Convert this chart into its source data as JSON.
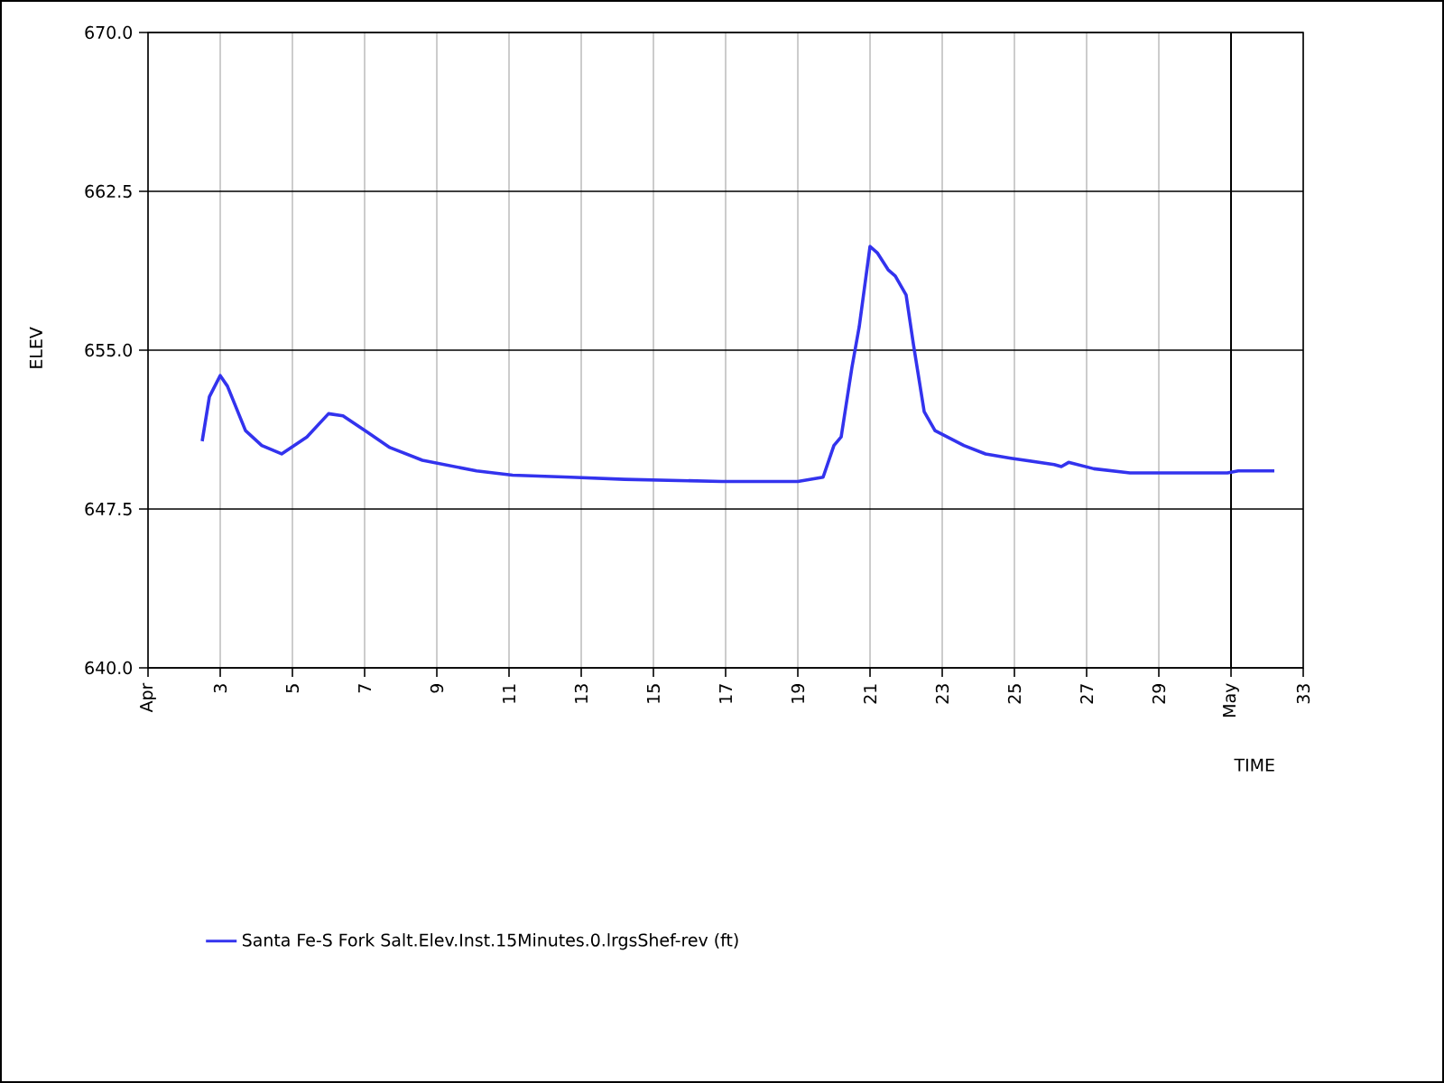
{
  "chart_data": {
    "type": "line",
    "xlabel": "TIME",
    "ylabel": "ELEV",
    "xlim": [
      1,
      33
    ],
    "ylim": [
      640,
      670
    ],
    "xticks": [
      {
        "value": 1,
        "label": "Apr"
      },
      3,
      5,
      7,
      9,
      11,
      13,
      15,
      17,
      19,
      21,
      23,
      25,
      27,
      29,
      {
        "value": 31,
        "label": "May"
      },
      33
    ],
    "yticks": [
      {
        "value": 640,
        "label": "640.0"
      },
      {
        "value": 647.5,
        "label": "647.5"
      },
      {
        "value": 655,
        "label": "655.0"
      },
      {
        "value": 662.5,
        "label": "662.5"
      },
      {
        "value": 670,
        "label": "670.0"
      }
    ],
    "grid": true,
    "legend": "bottom",
    "marker": "none",
    "line_style": "solid",
    "ref_lines": [
      {
        "axis": "x",
        "value": 31,
        "color": "#000000"
      }
    ],
    "series": [
      {
        "name": "Santa Fe-S Fork Salt.Elev.Inst.15Minutes.0.lrgsShef-rev (ft)",
        "color": "#3333ee",
        "x": [
          2.5,
          2.7,
          3.0,
          3.2,
          3.7,
          4.15,
          4.7,
          5.4,
          6.0,
          6.4,
          7.1,
          7.7,
          8.6,
          10.1,
          11.1,
          12.7,
          14.2,
          16.9,
          19.0,
          19.7,
          20.0,
          20.2,
          20.5,
          20.7,
          21.0,
          21.2,
          21.5,
          21.7,
          22.0,
          22.2,
          22.5,
          22.8,
          23.6,
          24.2,
          24.9,
          26.1,
          26.3,
          26.5,
          27.2,
          28.2,
          29.2,
          30.9,
          31.2,
          32.2
        ],
        "values": [
          650.7,
          652.8,
          653.8,
          653.3,
          651.2,
          650.5,
          650.1,
          650.9,
          652.0,
          651.9,
          651.1,
          650.4,
          649.8,
          649.3,
          649.1,
          649.0,
          648.9,
          648.8,
          648.8,
          649.0,
          650.5,
          650.9,
          654.2,
          656.1,
          659.9,
          659.6,
          658.8,
          658.5,
          657.6,
          655.3,
          652.1,
          651.2,
          650.5,
          650.1,
          649.9,
          649.6,
          649.5,
          649.7,
          649.4,
          649.2,
          649.2,
          649.2,
          649.3,
          649.3
        ]
      }
    ]
  }
}
